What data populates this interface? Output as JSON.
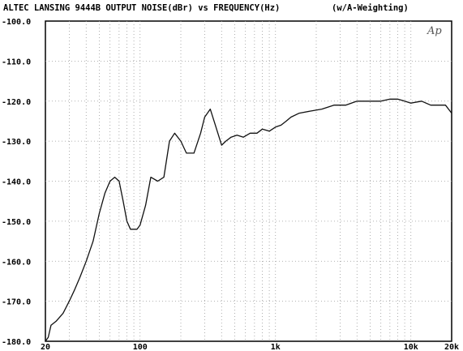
{
  "chart_data": {
    "type": "line",
    "title": "ALTEC LANSING  9444B  OUTPUT NOISE(dBr) vs FREQUENCY(Hz)",
    "subtitle": "(w/A-Weighting)",
    "logo": "Ap",
    "x_scale": "log",
    "xlim": [
      20,
      20000
    ],
    "ylim": [
      -180,
      -100
    ],
    "grid": true,
    "x_ticks": [
      {
        "value": 20,
        "label": "20"
      },
      {
        "value": 100,
        "label": "100"
      },
      {
        "value": 1000,
        "label": "1k"
      },
      {
        "value": 10000,
        "label": "10k"
      },
      {
        "value": 20000,
        "label": "20k"
      }
    ],
    "y_ticks": [
      {
        "value": -100,
        "label": "-100.0"
      },
      {
        "value": -110,
        "label": "-110.0"
      },
      {
        "value": -120,
        "label": "-120.0"
      },
      {
        "value": -130,
        "label": "-130.0"
      },
      {
        "value": -140,
        "label": "-140.0"
      },
      {
        "value": -150,
        "label": "-150.0"
      },
      {
        "value": -160,
        "label": "-160.0"
      },
      {
        "value": -170,
        "label": "-170.0"
      },
      {
        "value": -180,
        "label": "-180.0"
      }
    ],
    "series": [
      {
        "color": "#111111",
        "x": [
          20,
          21,
          22,
          24,
          27,
          30,
          33,
          36,
          40,
          45,
          50,
          55,
          60,
          65,
          70,
          75,
          80,
          85,
          90,
          95,
          100,
          110,
          120,
          135,
          150,
          165,
          180,
          200,
          220,
          250,
          280,
          300,
          330,
          360,
          400,
          430,
          470,
          520,
          580,
          650,
          730,
          800,
          900,
          1000,
          1100,
          1200,
          1300,
          1500,
          1800,
          2200,
          2700,
          3300,
          4000,
          5000,
          6000,
          7000,
          8000,
          9000,
          10000,
          12000,
          14000,
          16000,
          18000,
          20000
        ],
        "y": [
          -180,
          -179,
          -176,
          -175,
          -173,
          -170,
          -167,
          -164,
          -160,
          -155,
          -148,
          -143,
          -140,
          -139,
          -140,
          -145,
          -150,
          -152,
          -152,
          -152,
          -151,
          -146,
          -139,
          -140,
          -139,
          -130,
          -128,
          -130,
          -133,
          -133,
          -128,
          -124,
          -122,
          -126,
          -131,
          -130,
          -129,
          -128.5,
          -129,
          -128,
          -128,
          -127,
          -127.5,
          -126.5,
          -126,
          -125,
          -124,
          -123,
          -122.5,
          -122,
          -121,
          -121,
          -120,
          -120,
          -120,
          -119.5,
          -119.5,
          -120,
          -120.5,
          -120,
          -121,
          -121,
          -121,
          -123
        ]
      }
    ]
  }
}
